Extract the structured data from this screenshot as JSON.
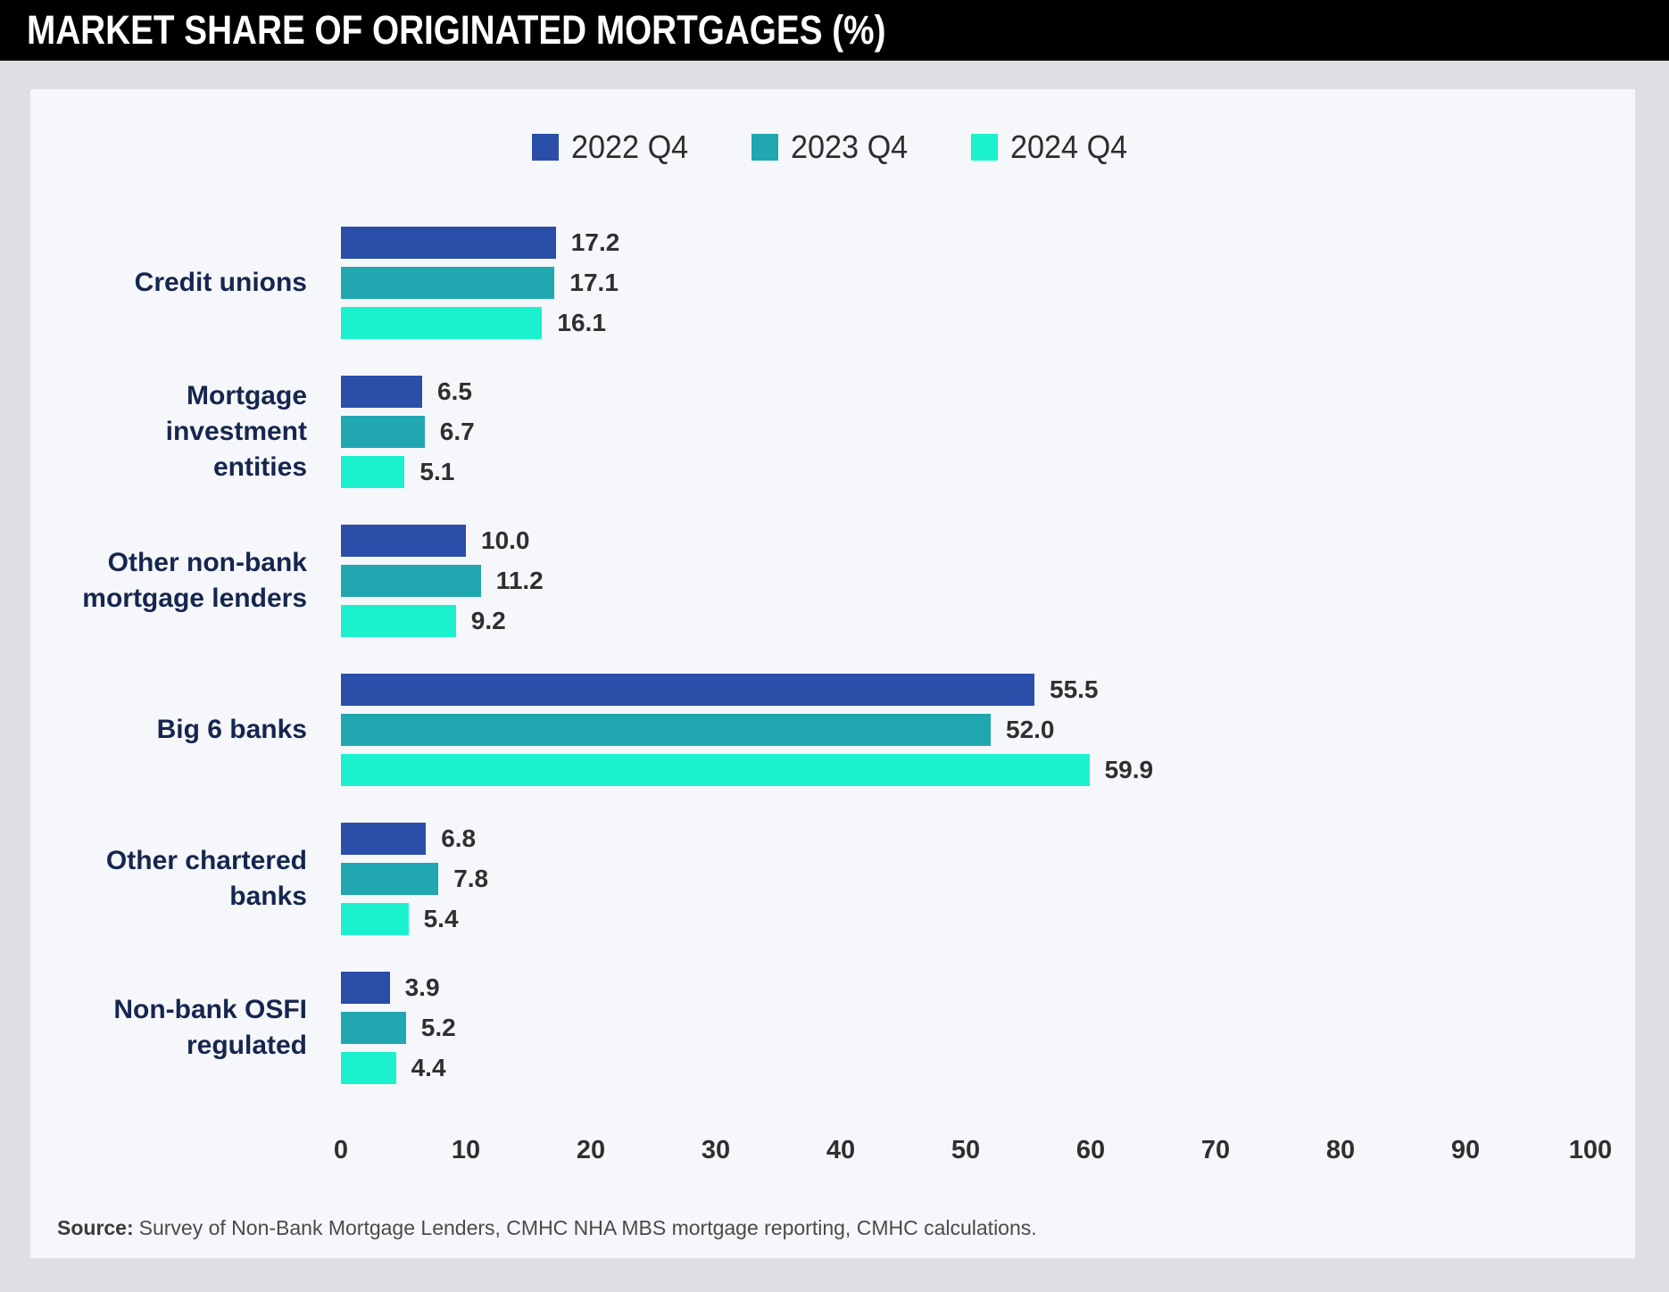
{
  "title": "MARKET SHARE OF ORIGINATED MORTGAGES (%)",
  "source": {
    "label": "Source:",
    "text": "Survey of Non-Bank Mortgage Lenders, CMHC NHA MBS mortgage reporting, CMHC calculations."
  },
  "colors": {
    "titlebar_bg": "#000000",
    "title_text": "#FFFFFF",
    "page_bg": "#DEDFE2",
    "card_bg": "#F6F7FB",
    "category_label": "#15264F",
    "value_label": "#2F2F2F",
    "series_2022": "#2B4EA9",
    "series_2023": "#21A7AF",
    "series_2024": "#1BF2CD"
  },
  "chart_data": {
    "type": "bar",
    "orientation": "horizontal",
    "title": "MARKET SHARE OF ORIGINATED MORTGAGES (%)",
    "xlabel": "",
    "ylabel": "",
    "xlim": [
      0,
      100
    ],
    "x_ticks": [
      0,
      10,
      20,
      30,
      40,
      50,
      60,
      70,
      80,
      90,
      100
    ],
    "grid": false,
    "legend_position": "top-center",
    "value_label_decimals": 1,
    "categories": [
      "Credit unions",
      "Mortgage investment entities",
      "Other non-bank mortgage lenders",
      "Big 6 banks",
      "Other chartered banks",
      "Non-bank OSFI regulated"
    ],
    "category_lines": [
      [
        "Credit unions"
      ],
      [
        "Mortgage",
        "investment",
        "entities"
      ],
      [
        "Other non-bank",
        "mortgage lenders"
      ],
      [
        "Big 6 banks"
      ],
      [
        "Other chartered",
        "banks"
      ],
      [
        "Non-bank OSFI",
        "regulated"
      ]
    ],
    "series": [
      {
        "name": "2022 Q4",
        "color": "#2B4EA9",
        "values": [
          17.2,
          6.5,
          10.0,
          55.5,
          6.8,
          3.9
        ]
      },
      {
        "name": "2023 Q4",
        "color": "#21A7AF",
        "values": [
          17.1,
          6.7,
          11.2,
          52.0,
          7.8,
          5.2
        ]
      },
      {
        "name": "2024 Q4",
        "color": "#1BF2CD",
        "values": [
          16.1,
          5.1,
          9.2,
          59.9,
          5.4,
          4.4
        ]
      }
    ]
  }
}
